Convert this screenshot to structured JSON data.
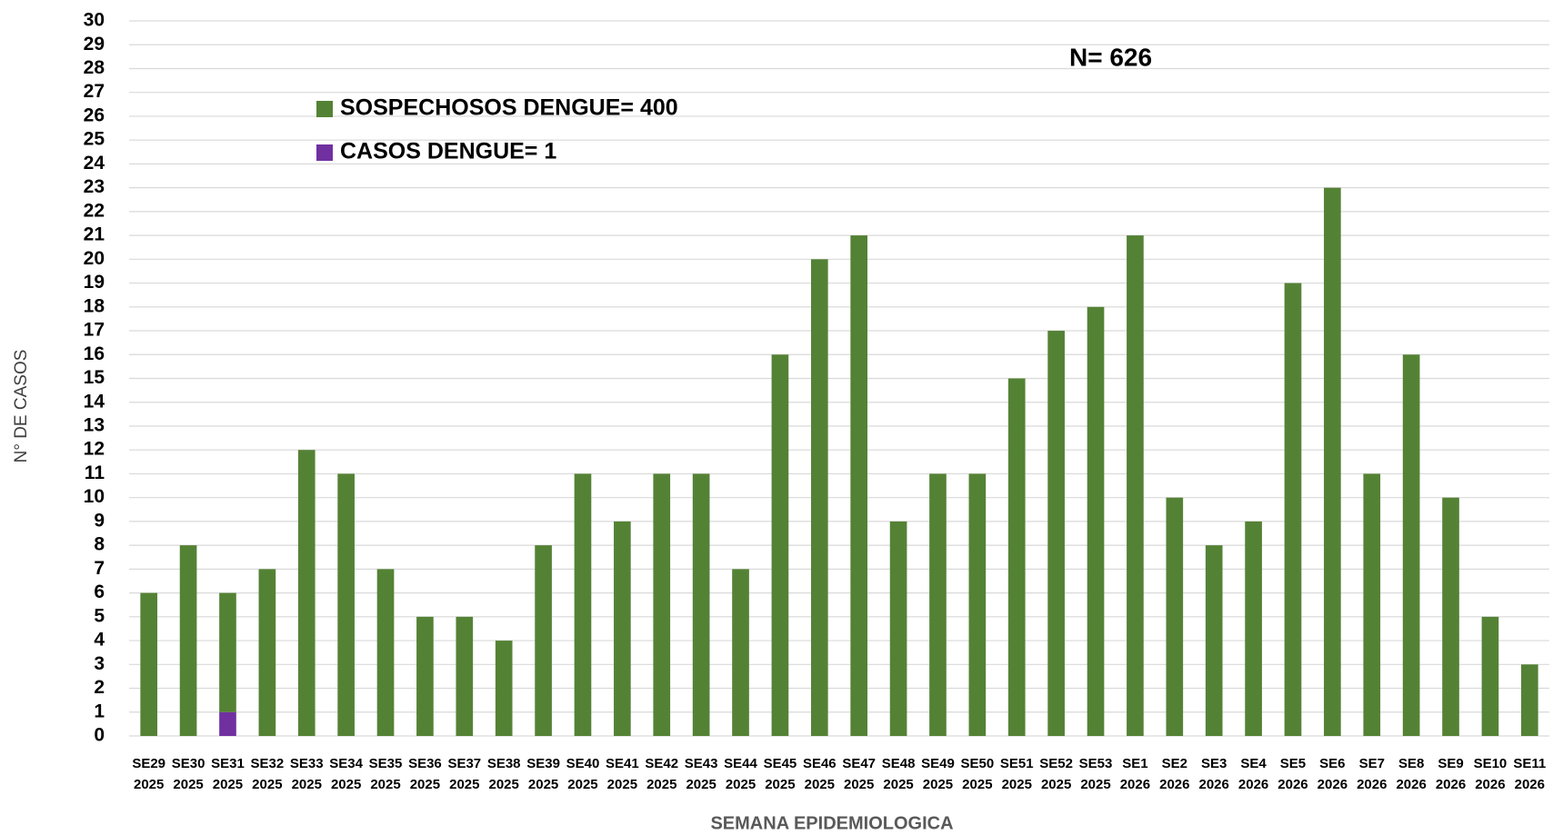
{
  "chart_data": {
    "type": "bar",
    "stacked": true,
    "title": "N= 626",
    "xlabel": "SEMANA  EPIDEMIOLOGICA",
    "ylabel": "N° DE CASOS",
    "categories": [
      "SE29 2025",
      "SE30 2025",
      "SE31 2025",
      "SE32 2025",
      "SE33 2025",
      "SE34 2025",
      "SE35 2025",
      "SE36 2025",
      "SE37 2025",
      "SE38 2025",
      "SE39 2025",
      "SE40 2025",
      "SE41 2025",
      "SE42 2025",
      "SE43 2025",
      "SE44 2025",
      "SE45 2025",
      "SE46 2025",
      "SE47 2025",
      "SE48 2025",
      "SE49 2025",
      "SE50 2025",
      "SE51 2025",
      "SE52 2025",
      "SE53 2025",
      "SE1 2026",
      "SE2 2026",
      "SE3 2026",
      "SE4 2026",
      "SE5 2026",
      "SE6 2026",
      "SE7 2026",
      "SE8 2026",
      "SE9 2026",
      "SE10 2026",
      "SE11 2026"
    ],
    "series": [
      {
        "name": "CASOS DENGUE= 1",
        "color": "#7030a0",
        "values": [
          0,
          0,
          1,
          0,
          0,
          0,
          0,
          0,
          0,
          0,
          0,
          0,
          0,
          0,
          0,
          0,
          0,
          0,
          0,
          0,
          0,
          0,
          0,
          0,
          0,
          0,
          0,
          0,
          0,
          0,
          0,
          0,
          0,
          0,
          0,
          0
        ]
      },
      {
        "name": "SOSPECHOSOS DENGUE= 400",
        "color": "#548235",
        "values": [
          6,
          8,
          5,
          7,
          12,
          11,
          7,
          5,
          5,
          4,
          8,
          11,
          9,
          11,
          11,
          7,
          16,
          20,
          21,
          9,
          11,
          11,
          15,
          17,
          18,
          21,
          10,
          8,
          9,
          19,
          23,
          11,
          16,
          10,
          5,
          3
        ]
      }
    ],
    "legend_order": [
      1,
      0
    ],
    "ylim": [
      0,
      30
    ],
    "yticks": [
      0,
      1,
      2,
      3,
      4,
      5,
      6,
      7,
      8,
      9,
      10,
      11,
      12,
      13,
      14,
      15,
      16,
      17,
      18,
      19,
      20,
      21,
      22,
      23,
      24,
      25,
      26,
      27,
      28,
      29,
      30
    ],
    "grid": true
  }
}
